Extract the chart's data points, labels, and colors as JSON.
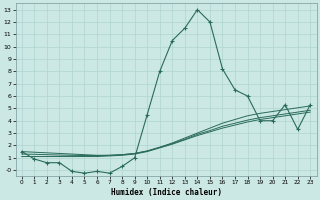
{
  "xlabel": "Humidex (Indice chaleur)",
  "bg_color": "#cce8e4",
  "grid_color": "#b0d4d0",
  "line_color": "#2a6b5a",
  "x_values": [
    0,
    1,
    2,
    3,
    4,
    5,
    6,
    7,
    8,
    9,
    10,
    11,
    12,
    13,
    14,
    15,
    16,
    17,
    18,
    19,
    20,
    21,
    22,
    23
  ],
  "main_y": [
    1.5,
    0.9,
    0.6,
    0.6,
    -0.1,
    -0.25,
    -0.1,
    -0.25,
    0.3,
    1.0,
    4.5,
    8.0,
    10.5,
    11.5,
    13.0,
    12.0,
    8.2,
    6.5,
    6.0,
    4.0,
    4.0,
    5.3,
    3.3,
    5.3
  ],
  "line1_y": [
    1.5,
    1.45,
    1.4,
    1.35,
    1.3,
    1.25,
    1.2,
    1.2,
    1.25,
    1.35,
    1.55,
    1.85,
    2.2,
    2.6,
    3.0,
    3.4,
    3.8,
    4.1,
    4.4,
    4.6,
    4.75,
    4.9,
    5.05,
    5.2
  ],
  "line2_y": [
    1.3,
    1.28,
    1.25,
    1.22,
    1.2,
    1.18,
    1.18,
    1.2,
    1.25,
    1.35,
    1.55,
    1.85,
    2.15,
    2.5,
    2.9,
    3.2,
    3.55,
    3.8,
    4.05,
    4.25,
    4.4,
    4.55,
    4.7,
    4.85
  ],
  "line3_y": [
    1.1,
    1.1,
    1.1,
    1.1,
    1.1,
    1.1,
    1.1,
    1.15,
    1.2,
    1.3,
    1.5,
    1.8,
    2.1,
    2.45,
    2.8,
    3.1,
    3.4,
    3.65,
    3.9,
    4.1,
    4.25,
    4.4,
    4.55,
    4.7
  ],
  "ylim": [
    -0.5,
    13.5
  ],
  "xlim": [
    -0.5,
    23.5
  ],
  "yticks": [
    0,
    1,
    2,
    3,
    4,
    5,
    6,
    7,
    8,
    9,
    10,
    11,
    12,
    13
  ],
  "ytick_labels": [
    "-0",
    "1",
    "2",
    "3",
    "4",
    "5",
    "6",
    "7",
    "8",
    "9",
    "10",
    "11",
    "12",
    "13"
  ],
  "xticks": [
    0,
    1,
    2,
    3,
    4,
    5,
    6,
    7,
    8,
    9,
    10,
    11,
    12,
    13,
    14,
    15,
    16,
    17,
    18,
    19,
    20,
    21,
    22,
    23
  ]
}
